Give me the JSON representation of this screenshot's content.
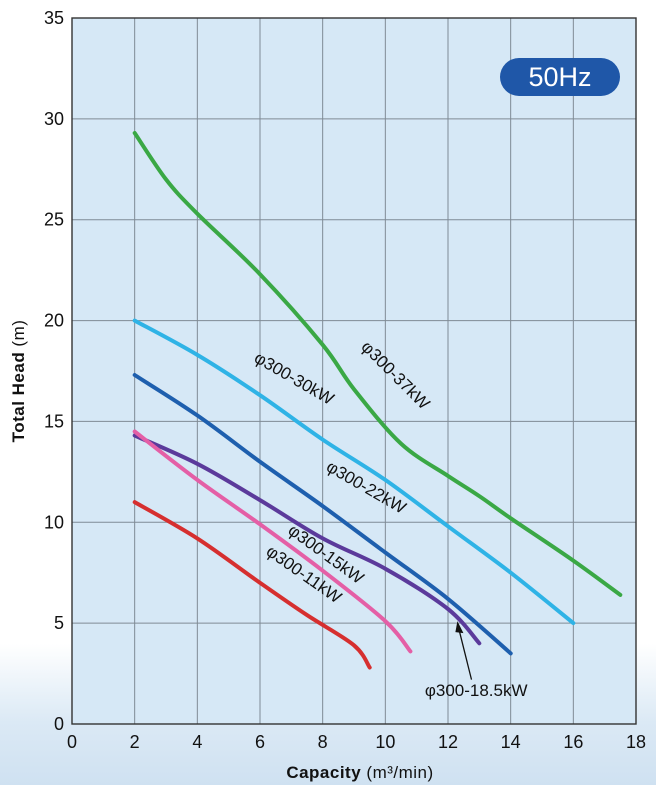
{
  "chart_data": {
    "type": "line",
    "xlabel": "Capacity",
    "xlabel_unit": "(m³/min)",
    "ylabel": "Total Head",
    "ylabel_unit": "(m)",
    "xlim": [
      0,
      18
    ],
    "ylim": [
      0,
      35
    ],
    "x_ticks": [
      0,
      2,
      4,
      6,
      8,
      10,
      12,
      14,
      16,
      18
    ],
    "y_ticks": [
      0,
      5,
      10,
      15,
      20,
      25,
      30,
      35
    ],
    "grid": true,
    "badge": "50Hz",
    "colors": {
      "plot_bg": "#d6e8f6",
      "grid": "#7f8a95",
      "badge_bg": "#1f57a8",
      "badge_text": "#ffffff"
    },
    "series": [
      {
        "name": "φ300-37kW",
        "color": "#3aa845",
        "points": [
          [
            2,
            29.3
          ],
          [
            3,
            27.0
          ],
          [
            4,
            25.3
          ],
          [
            6,
            22.3
          ],
          [
            8,
            18.8
          ],
          [
            9,
            16.6
          ],
          [
            10.5,
            13.9
          ],
          [
            12,
            12.3
          ],
          [
            13,
            11.3
          ],
          [
            14,
            10.2
          ],
          [
            16,
            8.1
          ],
          [
            17.5,
            6.4
          ]
        ]
      },
      {
        "name": "φ300-30kW",
        "color": "#2fb3e6",
        "points": [
          [
            2,
            20.0
          ],
          [
            4,
            18.3
          ],
          [
            6,
            16.3
          ],
          [
            8,
            14.1
          ],
          [
            10,
            12.1
          ],
          [
            12,
            9.8
          ],
          [
            14,
            7.5
          ],
          [
            16,
            5.0
          ]
        ]
      },
      {
        "name": "φ300-22kW",
        "color": "#1e5fae",
        "points": [
          [
            2,
            17.3
          ],
          [
            4,
            15.3
          ],
          [
            6,
            13.0
          ],
          [
            8,
            10.8
          ],
          [
            10,
            8.5
          ],
          [
            12,
            6.2
          ],
          [
            14,
            3.5
          ]
        ]
      },
      {
        "name": "φ300-18.5kW",
        "color": "#5b3a9b",
        "points": [
          [
            2,
            14.3
          ],
          [
            4,
            12.9
          ],
          [
            6,
            11.1
          ],
          [
            8,
            9.2
          ],
          [
            10,
            7.7
          ],
          [
            12,
            5.7
          ],
          [
            13,
            4.0
          ]
        ]
      },
      {
        "name": "φ300-15kW",
        "color": "#e45fa6",
        "points": [
          [
            2,
            14.5
          ],
          [
            4,
            12.1
          ],
          [
            6,
            9.9
          ],
          [
            8,
            7.6
          ],
          [
            10,
            5.1
          ],
          [
            10.8,
            3.6
          ]
        ]
      },
      {
        "name": "φ300-11kW",
        "color": "#d62f2f",
        "points": [
          [
            2,
            11.0
          ],
          [
            4,
            9.2
          ],
          [
            6,
            7.0
          ],
          [
            7.5,
            5.4
          ],
          [
            9,
            3.9
          ],
          [
            9.5,
            2.8
          ]
        ]
      }
    ]
  }
}
